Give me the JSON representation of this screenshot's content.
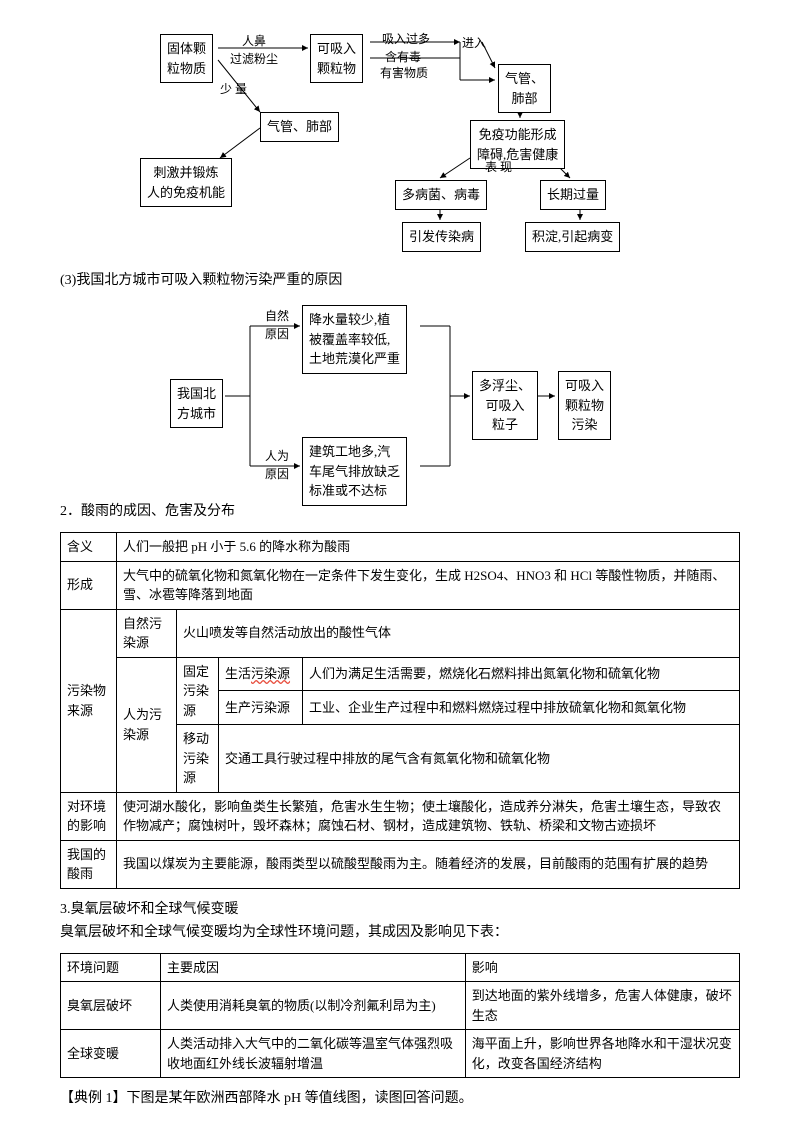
{
  "diagram1": {
    "box1": "固体颗\n粒物质",
    "lbl1a": "人鼻",
    "lbl1b": "过滤粉尘",
    "box2": "可吸入\n颗粒物",
    "lbl2a": "吸入过多",
    "lbl2b": "含有毒",
    "lbl2c": "有害物质",
    "lbl2d": "进入",
    "box3": "气管、\n肺部",
    "lbl3": "少 量",
    "box4": "气管、肺部",
    "box5": "刺激并锻炼\n人的免疫机能",
    "box6": "免疫功能形成\n障碍,危害健康",
    "lbl6": "表   现",
    "box7": "多病菌、病毒",
    "box8": "长期过量",
    "box9": "引发传染病",
    "box10": "积淀,引起病变"
  },
  "caption3": "(3)我国北方城市可吸入颗粒物污染严重的原因",
  "diagram2": {
    "lblA": "自然\n原因",
    "box1": "降水量较少,植\n被覆盖率较低,\n土地荒漠化严重",
    "box2": "我国北\n方城市",
    "box3": "多浮尘、\n可吸入\n粒子",
    "box4": "可吸入\n颗粒物\n污染",
    "lblB": "人为\n原因",
    "box5": "建筑工地多,汽\n车尾气排放缺乏\n标准或不达标"
  },
  "heading2": "2．酸雨的成因、危害及分布",
  "t1": {
    "r1c1": "含义",
    "r1c2": "人们一般把 pH 小于 5.6 的降水称为酸雨",
    "r2c1": "形成",
    "r2c2": "大气中的硫氧化物和氮氧化物在一定条件下发生变化，生成 H2SO4、HNO3 和 HCl 等酸性物质，并随雨、雪、冰雹等降落到地面",
    "r3c1": "污染物来源",
    "r3c2": "自然污染源",
    "r3c3": "火山喷发等自然活动放出的酸性气体",
    "r4c2": "人为污染源",
    "r4c3": "固定污染源",
    "r4c4": "生活",
    "r4c4b": "污染源",
    "r4c5": "人们为满足生活需要，燃烧化石燃料排出氮氧化物和硫氧化物",
    "r5c4": "生产污染源",
    "r5c5": "工业、企业生产过程中和燃料燃烧过程中排放硫氧化物和氮氧化物",
    "r6c3": "移动污染源",
    "r6c5": "交通工具行驶过程中排放的尾气含有氮氧化物和硫氧化物",
    "r7c1": "对环境的影响",
    "r7c2": "使河湖水酸化，影响鱼类生长繁殖，危害水生生物；使土壤酸化，造成养分淋失，危害土壤生态，导致农作物减产；腐蚀树叶，毁坏森林；腐蚀石材、钢材，造成建筑物、铁轨、桥梁和文物古迹损坏",
    "r8c1": "我国的酸雨",
    "r8c2": "我国以煤炭为主要能源，酸雨类型以硫酸型酸雨为主。随着经济的发展，目前酸雨的范围有扩展的趋势"
  },
  "heading3": "3.臭氧层破坏和全球气候变暖",
  "para3": "臭氧层破坏和全球气候变暖均为全球性环境问题，其成因及影响见下表：",
  "t2": {
    "h1": "环境问题",
    "h2": "主要成因",
    "h3": "影响",
    "r1c1": "臭氧层破坏",
    "r1c2": "人类使用消耗臭氧的物质(以制冷剂氟利昂为主)",
    "r1c3": "到达地面的紫外线增多，危害人体健康，破坏生态",
    "r2c1": "全球变暖",
    "r2c2": "人类活动排入大气中的二氧化碳等温室气体强烈吸收地面红外线长波辐射增温",
    "r2c3": "海平面上升，影响世界各地降水和干湿状况变化，改变各国经济结构"
  },
  "example1": "【典例 1】下图是某年欧洲西部降水 pH 等值线图，读图回答问题。"
}
